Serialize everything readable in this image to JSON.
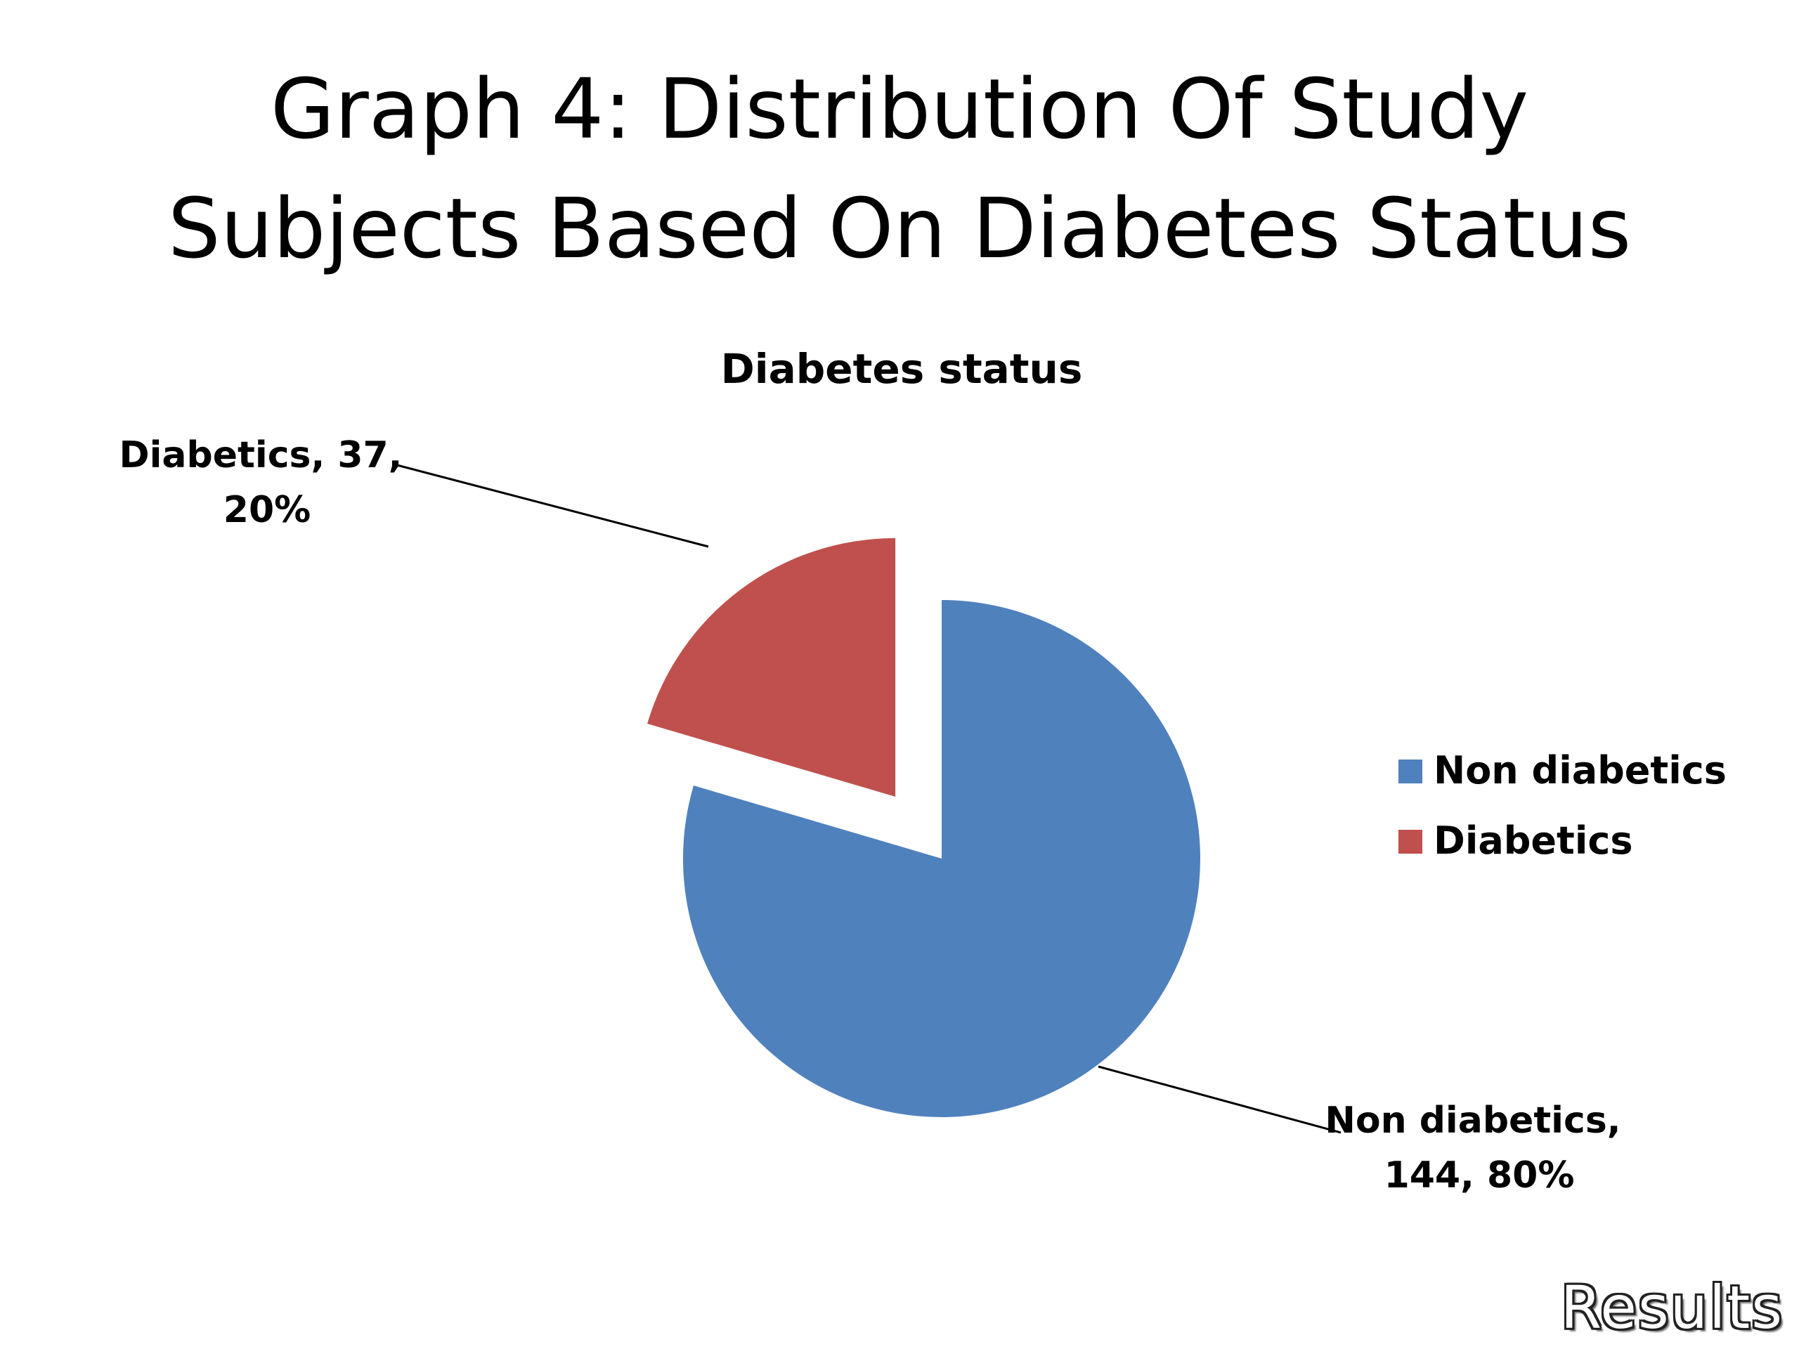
{
  "slide": {
    "title_line1": "Graph 4: Distribution Of Study",
    "title_line2": "Subjects Based On Diabetes Status",
    "footer": "Results"
  },
  "chart_data": {
    "type": "pie",
    "title": "Diabetes status",
    "slices": [
      {
        "name": "Non diabetics",
        "value": 144,
        "percent": 80,
        "color": "#4F81BD",
        "exploded": false,
        "label_line1": "Non diabetics,",
        "label_line2": "144, 80%"
      },
      {
        "name": "Diabetics",
        "value": 37,
        "percent": 20,
        "color": "#C0504D",
        "exploded": true,
        "label_line1": "Diabetics, 37,",
        "label_line2": "20%"
      }
    ],
    "legend": [
      "Non diabetics",
      "Diabetics"
    ],
    "legend_position": "right"
  }
}
